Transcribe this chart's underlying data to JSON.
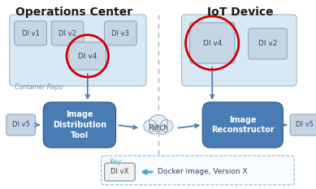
{
  "bg_color": "#ffffff",
  "title_left": "Operations Center",
  "title_right": "IoT Device",
  "title_fontsize": 10,
  "container_repo_color": "#d9e8f5",
  "container_repo_label": "Container Repo",
  "iot_box_color": "#d9e8f5",
  "small_box_color": "#c5d5e4",
  "small_box_edge": "#8fa8c0",
  "main_box_color": "#4a7db5",
  "main_box_edge": "#3a6090",
  "main_box_text_color": "#ffffff",
  "arrow_color": "#5580aa",
  "red_circle_color": "#cc0000",
  "dashed_line_color": "#aaaaaa",
  "key_box_edge": "#88bbcc",
  "key_label_color": "#66aacc",
  "cloud_color": "#e8eef5",
  "cloud_edge": "#9ab0c8"
}
